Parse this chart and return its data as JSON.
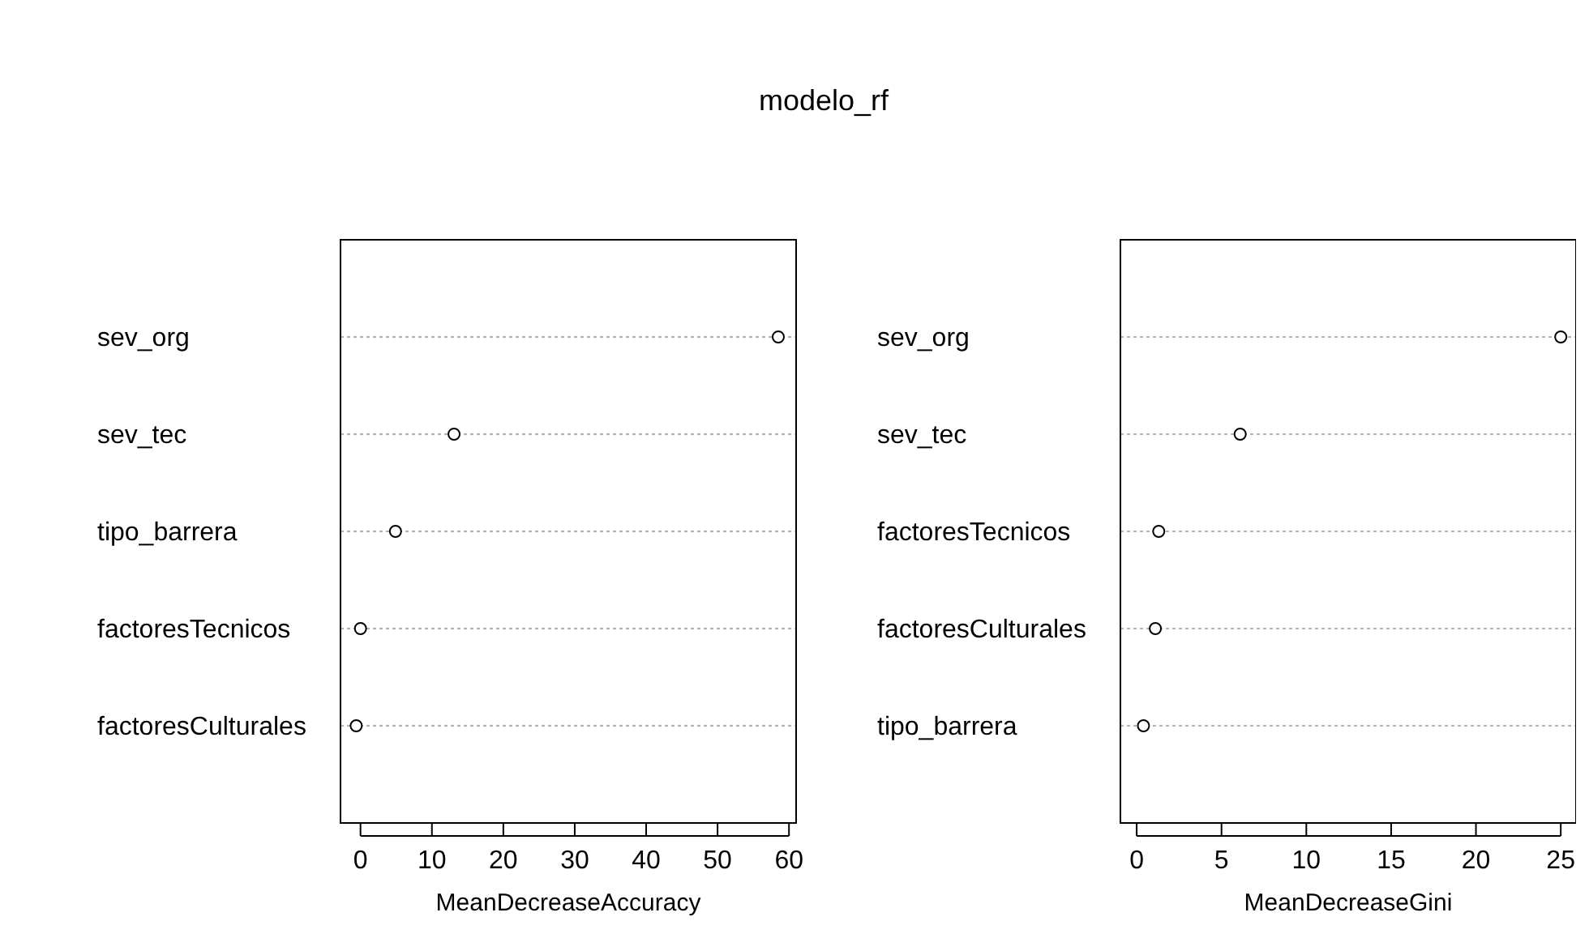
{
  "chart_data": [
    {
      "type": "scatter",
      "title": "modelo_rf",
      "orientation": "horizontal",
      "categories": [
        "sev_org",
        "sev_tec",
        "tipo_barrera",
        "factoresTecnicos",
        "factoresCulturales"
      ],
      "values": [
        58.5,
        13.1,
        4.9,
        0,
        -0.6
      ],
      "color": "#000000",
      "xlabel": "MeanDecreaseAccuracy",
      "xlim": [
        -2.8,
        61
      ],
      "xticks": [
        0,
        10,
        20,
        30,
        40,
        50,
        60
      ],
      "grid": "y",
      "marker": "circle"
    },
    {
      "type": "scatter",
      "orientation": "horizontal",
      "categories": [
        "sev_org",
        "sev_tec",
        "factoresTecnicos",
        "factoresCulturales",
        "tipo_barrera"
      ],
      "values": [
        25,
        6.1,
        1.3,
        1.1,
        0.4
      ],
      "color": "#000000",
      "xlabel": "MeanDecreaseGini",
      "xlim": [
        -0.96,
        25.9
      ],
      "xticks": [
        0,
        5,
        10,
        15,
        20,
        25
      ],
      "grid": "y",
      "marker": "circle"
    }
  ]
}
